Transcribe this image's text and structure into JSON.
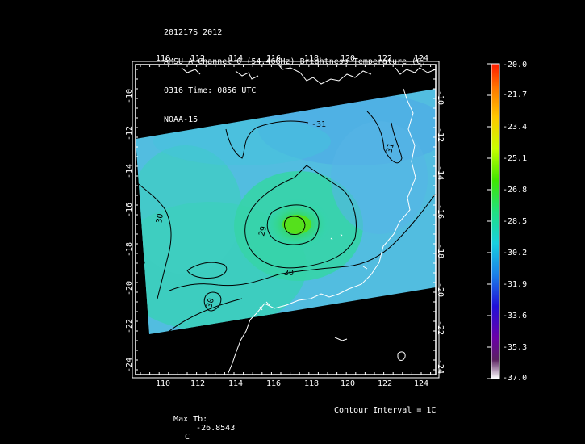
{
  "header": {
    "line1": "201217S 2012",
    "line2": "AMSU-A Channel 6 (54.46GHz) Brightness Temperature (C)",
    "line3": "0316 Time: 0856 UTC",
    "line4": "NOAA-15"
  },
  "axes": {
    "lon_labels": [
      "110",
      "112",
      "114",
      "116",
      "118",
      "120",
      "122",
      "124"
    ],
    "lat_labels": [
      "-10",
      "-12",
      "-14",
      "-16",
      "-18",
      "-20",
      "-22",
      "-24"
    ]
  },
  "colorbar": {
    "labels": [
      "-20.0",
      "-21.7",
      "-23.4",
      "-25.1",
      "-26.8",
      "-28.5",
      "-30.2",
      "-31.9",
      "-33.6",
      "-35.3",
      "-37.0"
    ],
    "colors": [
      "#ff1a00",
      "#ff8c00",
      "#ffd400",
      "#d4ff00",
      "#3fe000",
      "#2ee06a",
      "#1ec8e0",
      "#1e78e6",
      "#3010d0",
      "#6a00a0",
      "#5a1a6a",
      "#ffffff"
    ]
  },
  "contour_labels": [
    "-31",
    "31",
    "30",
    "29",
    "30",
    "30",
    "29",
    "30"
  ],
  "footer": {
    "max_tb_label": "Max Tb:",
    "max_tb_value": "-26.8543",
    "max_tb_unit": "C",
    "contour_interval": "Contour Interval = 1C"
  }
}
